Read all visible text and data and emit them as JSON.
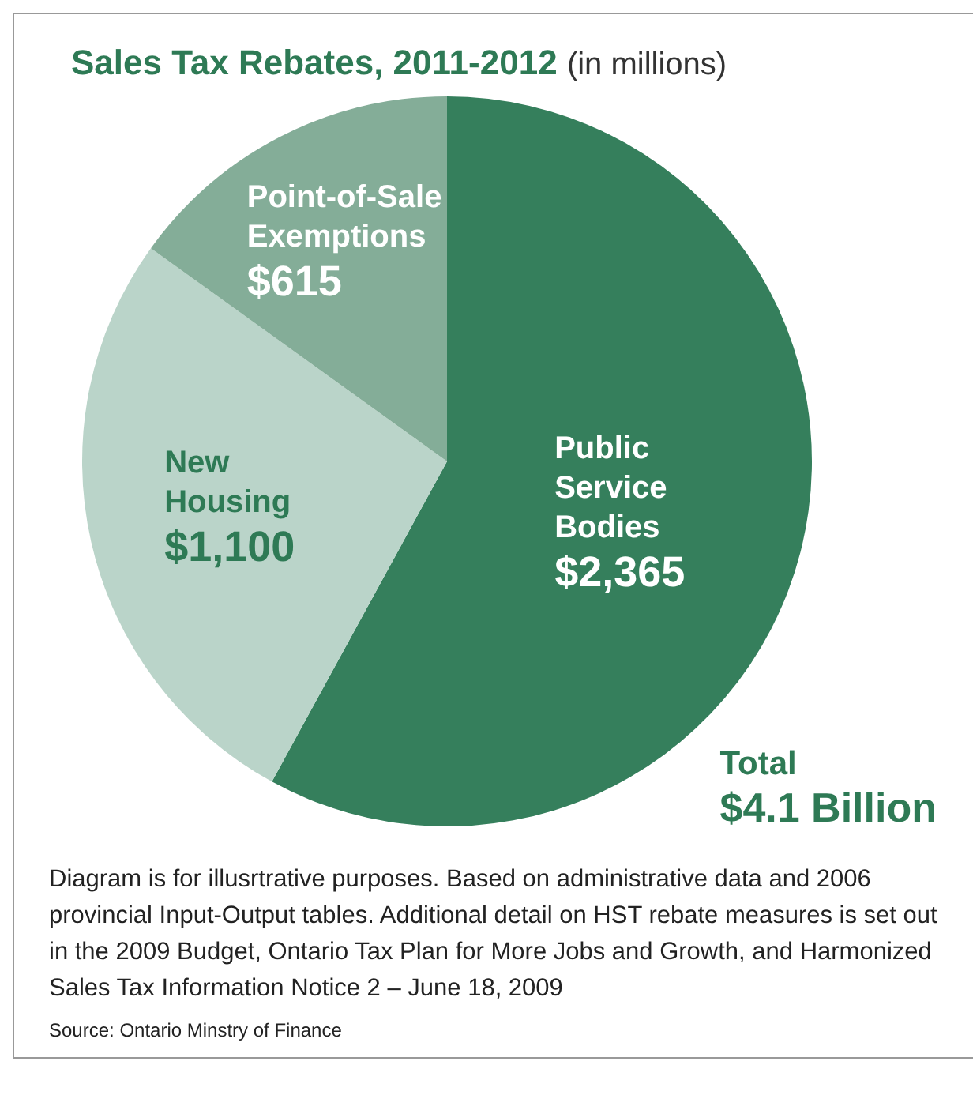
{
  "chart_data": {
    "type": "pie",
    "title": "Sales Tax Rebates, 2011-2012",
    "subtitle": "(in millions)",
    "categories": [
      "Public Service Bodies",
      "New Housing",
      "Point-of-Sale Exemptions"
    ],
    "values": [
      2365,
      1100,
      615
    ],
    "value_labels": [
      "$2,365",
      "$1,100",
      "$615"
    ],
    "colors": [
      "#357f5c",
      "#bad4c9",
      "#84ad98"
    ],
    "legend": false,
    "annotations": [
      "Total",
      "$4.1 Billion",
      "Diagram is for illusrtrative purposes. Based on administrative data and 2006 provincial Input-Output tables. Additional detail on HST rebate measures is set out in the 2009 Budget, Ontario Tax Plan for More Jobs and Growth, and Harmonized Sales Tax Information Notice 2 – June 18, 2009",
      "Source: Ontario Minstry of Finance"
    ]
  }
}
